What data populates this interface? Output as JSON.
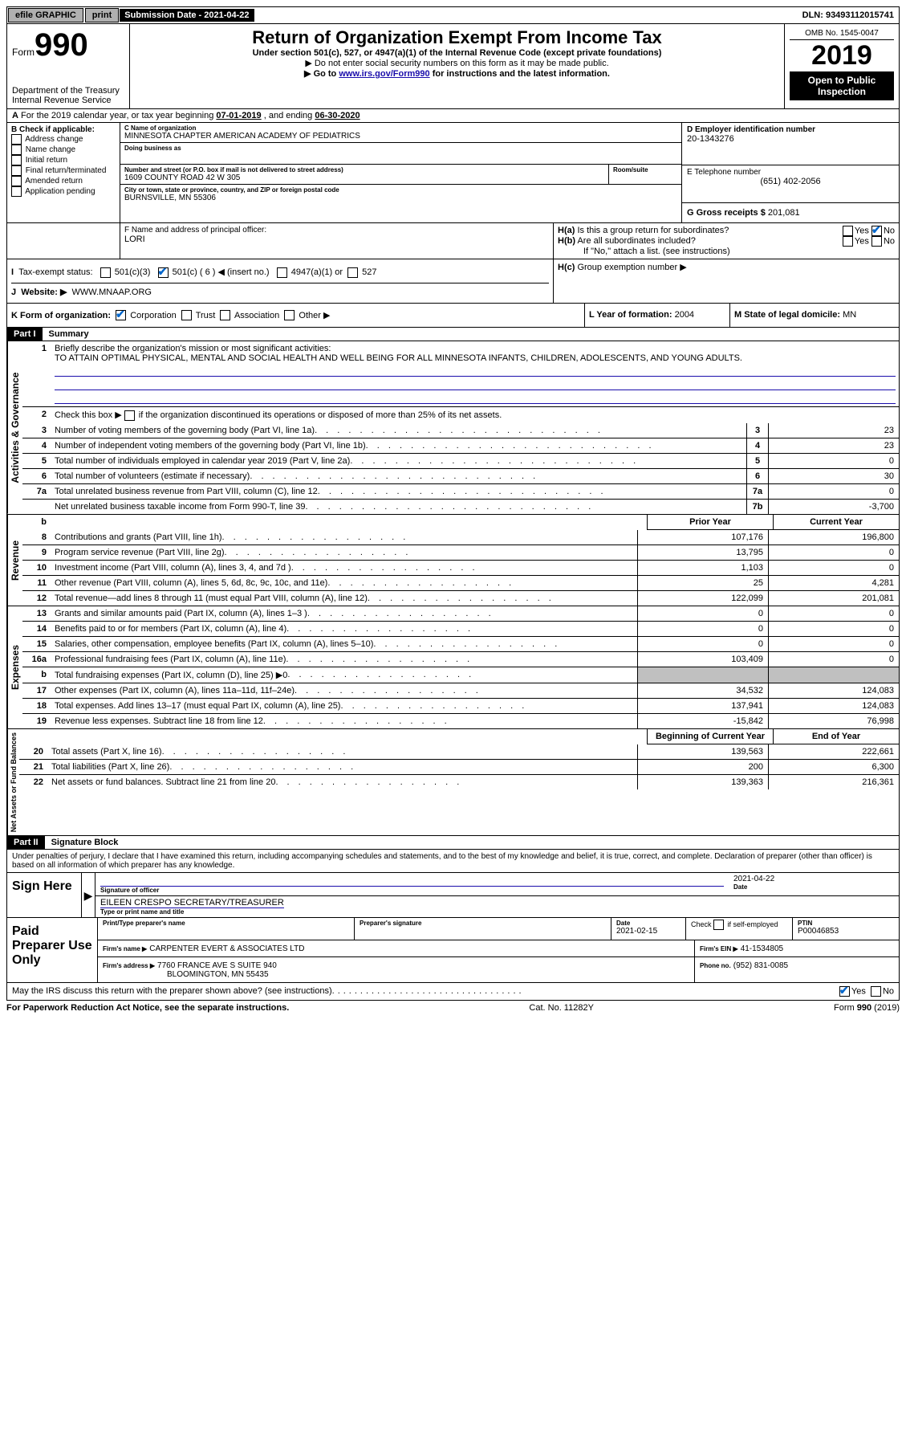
{
  "topbar": {
    "efile": "efile GRAPHIC",
    "print": "print",
    "sub_date_label": "Submission Date - 2021-04-22",
    "dln": "DLN: 93493112015741"
  },
  "header": {
    "form_word": "Form",
    "form_num": "990",
    "dept": "Department of the Treasury\nInternal Revenue Service",
    "title": "Return of Organization Exempt From Income Tax",
    "sub1": "Under section 501(c), 527, or 4947(a)(1) of the Internal Revenue Code (except private foundations)",
    "sub2": "▶ Do not enter social security numbers on this form as it may be made public.",
    "sub3_pre": "▶ Go to ",
    "sub3_link": "www.irs.gov/Form990",
    "sub3_post": " for instructions and the latest information.",
    "omb": "OMB No. 1545-0047",
    "year": "2019",
    "open": "Open to Public Inspection"
  },
  "lineA": {
    "text_pre": "For the 2019 calendar year, or tax year beginning ",
    "begin": "07-01-2019",
    "text_mid": " , and ending ",
    "end": "06-30-2020"
  },
  "boxB": {
    "label": "B Check if applicable:",
    "opts": [
      "Address change",
      "Name change",
      "Initial return",
      "Final return/terminated",
      "Amended return",
      "Application pending"
    ]
  },
  "boxC": {
    "label": "C Name of organization",
    "name": "MINNESOTA CHAPTER AMERICAN ACADEMY OF PEDIATRICS",
    "dba_label": "Doing business as",
    "addr_label": "Number and street (or P.O. box if mail is not delivered to street address)",
    "room_label": "Room/suite",
    "addr": "1609 COUNTY ROAD 42 W 305",
    "city_label": "City or town, state or province, country, and ZIP or foreign postal code",
    "city": "BURNSVILLE, MN  55306"
  },
  "boxD": {
    "label": "D Employer identification number",
    "val": "20-1343276"
  },
  "boxE": {
    "label": "E Telephone number",
    "val": "(651) 402-2056"
  },
  "boxG": {
    "label": "G Gross receipts $",
    "val": "201,081"
  },
  "boxF": {
    "label": "F  Name and address of principal officer:",
    "val": "LORI"
  },
  "boxH": {
    "ha": "Is this a group return for subordinates?",
    "hb": "Are all subordinates included?",
    "hb_note": "If \"No,\" attach a list. (see instructions)",
    "hc": "Group exemption number ▶"
  },
  "boxI": {
    "label": "Tax-exempt status:",
    "o1": "501(c)(3)",
    "o2": "501(c) ( 6 ) ◀ (insert no.)",
    "o3": "4947(a)(1) or",
    "o4": "527"
  },
  "boxJ": {
    "label": "Website: ▶",
    "val": "WWW.MNAAP.ORG"
  },
  "boxK": {
    "label": "K Form of organization:",
    "o1": "Corporation",
    "o2": "Trust",
    "o3": "Association",
    "o4": "Other ▶"
  },
  "boxL": {
    "label": "L Year of formation:",
    "val": "2004"
  },
  "boxM": {
    "label": "M State of legal domicile:",
    "val": "MN"
  },
  "part1": {
    "header": "Part I",
    "title": "Summary",
    "l1_label": "Briefly describe the organization's mission or most significant activities:",
    "l1_text": "TO ATTAIN OPTIMAL PHYSICAL, MENTAL AND SOCIAL HEALTH AND WELL BEING FOR ALL MINNESOTA INFANTS, CHILDREN, ADOLESCENTS, AND YOUNG ADULTS.",
    "l2": "Check this box ▶       if the organization discontinued its operations or disposed of more than 25% of its net assets.",
    "rows_ag": [
      {
        "n": "3",
        "d": "Number of voting members of the governing body (Part VI, line 1a)",
        "box": "3",
        "v": "23"
      },
      {
        "n": "4",
        "d": "Number of independent voting members of the governing body (Part VI, line 1b)",
        "box": "4",
        "v": "23"
      },
      {
        "n": "5",
        "d": "Total number of individuals employed in calendar year 2019 (Part V, line 2a)",
        "box": "5",
        "v": "0"
      },
      {
        "n": "6",
        "d": "Total number of volunteers (estimate if necessary)",
        "box": "6",
        "v": "30"
      },
      {
        "n": "7a",
        "d": "Total unrelated business revenue from Part VIII, column (C), line 12",
        "box": "7a",
        "v": "0"
      },
      {
        "n": "",
        "d": "Net unrelated business taxable income from Form 990-T, line 39",
        "box": "7b",
        "v": "-3,700"
      }
    ],
    "col_prior": "Prior Year",
    "col_current": "Current Year",
    "rows_rev": [
      {
        "n": "8",
        "d": "Contributions and grants (Part VIII, line 1h)",
        "p": "107,176",
        "c": "196,800"
      },
      {
        "n": "9",
        "d": "Program service revenue (Part VIII, line 2g)",
        "p": "13,795",
        "c": "0"
      },
      {
        "n": "10",
        "d": "Investment income (Part VIII, column (A), lines 3, 4, and 7d )",
        "p": "1,103",
        "c": "0"
      },
      {
        "n": "11",
        "d": "Other revenue (Part VIII, column (A), lines 5, 6d, 8c, 9c, 10c, and 11e)",
        "p": "25",
        "c": "4,281"
      },
      {
        "n": "12",
        "d": "Total revenue—add lines 8 through 11 (must equal Part VIII, column (A), line 12)",
        "p": "122,099",
        "c": "201,081"
      }
    ],
    "rows_exp": [
      {
        "n": "13",
        "d": "Grants and similar amounts paid (Part IX, column (A), lines 1–3 )",
        "p": "0",
        "c": "0"
      },
      {
        "n": "14",
        "d": "Benefits paid to or for members (Part IX, column (A), line 4)",
        "p": "0",
        "c": "0"
      },
      {
        "n": "15",
        "d": "Salaries, other compensation, employee benefits (Part IX, column (A), lines 5–10)",
        "p": "0",
        "c": "0"
      },
      {
        "n": "16a",
        "d": "Professional fundraising fees (Part IX, column (A), line 11e)",
        "p": "103,409",
        "c": "0"
      },
      {
        "n": "b",
        "d": "Total fundraising expenses (Part IX, column (D), line 25) ▶0",
        "p": "",
        "c": "",
        "gray": true
      },
      {
        "n": "17",
        "d": "Other expenses (Part IX, column (A), lines 11a–11d, 11f–24e)",
        "p": "34,532",
        "c": "124,083"
      },
      {
        "n": "18",
        "d": "Total expenses. Add lines 13–17 (must equal Part IX, column (A), line 25)",
        "p": "137,941",
        "c": "124,083"
      },
      {
        "n": "19",
        "d": "Revenue less expenses. Subtract line 18 from line 12",
        "p": "-15,842",
        "c": "76,998"
      }
    ],
    "col_begin": "Beginning of Current Year",
    "col_end": "End of Year",
    "rows_net": [
      {
        "n": "20",
        "d": "Total assets (Part X, line 16)",
        "p": "139,563",
        "c": "222,661"
      },
      {
        "n": "21",
        "d": "Total liabilities (Part X, line 26)",
        "p": "200",
        "c": "6,300"
      },
      {
        "n": "22",
        "d": "Net assets or fund balances. Subtract line 21 from line 20",
        "p": "139,363",
        "c": "216,361"
      }
    ],
    "vert_ag": "Activities & Governance",
    "vert_rev": "Revenue",
    "vert_exp": "Expenses",
    "vert_net": "Net Assets or Fund Balances"
  },
  "part2": {
    "header": "Part II",
    "title": "Signature Block",
    "perjury": "Under penalties of perjury, I declare that I have examined this return, including accompanying schedules and statements, and to the best of my knowledge and belief, it is true, correct, and complete. Declaration of preparer (other than officer) is based on all information of which preparer has any knowledge."
  },
  "sign": {
    "here": "Sign Here",
    "sig_officer": "Signature of officer",
    "date_label": "Date",
    "date_val": "2021-04-22",
    "name": "EILEEN CRESPO  SECRETARY/TREASURER",
    "name_label": "Type or print name and title"
  },
  "paid": {
    "label": "Paid Preparer Use Only",
    "prep_name_label": "Print/Type preparer's name",
    "prep_sig_label": "Preparer's signature",
    "date_label": "Date",
    "date_val": "2021-02-15",
    "check_label": "Check        if self-employed",
    "ptin_label": "PTIN",
    "ptin_val": "P00046853",
    "firm_name_label": "Firm's name    ▶",
    "firm_name": "CARPENTER EVERT & ASSOCIATES LTD",
    "firm_ein_label": "Firm's EIN ▶",
    "firm_ein": "41-1534805",
    "firm_addr_label": "Firm's address ▶",
    "firm_addr": "7760 FRANCE AVE S SUITE 940",
    "firm_city": "BLOOMINGTON, MN  55435",
    "phone_label": "Phone no.",
    "phone": "(952) 831-0085"
  },
  "discuss": "May the IRS discuss this return with the preparer shown above? (see instructions)",
  "footer": {
    "left": "For Paperwork Reduction Act Notice, see the separate instructions.",
    "mid": "Cat. No. 11282Y",
    "right": "Form 990 (2019)"
  }
}
